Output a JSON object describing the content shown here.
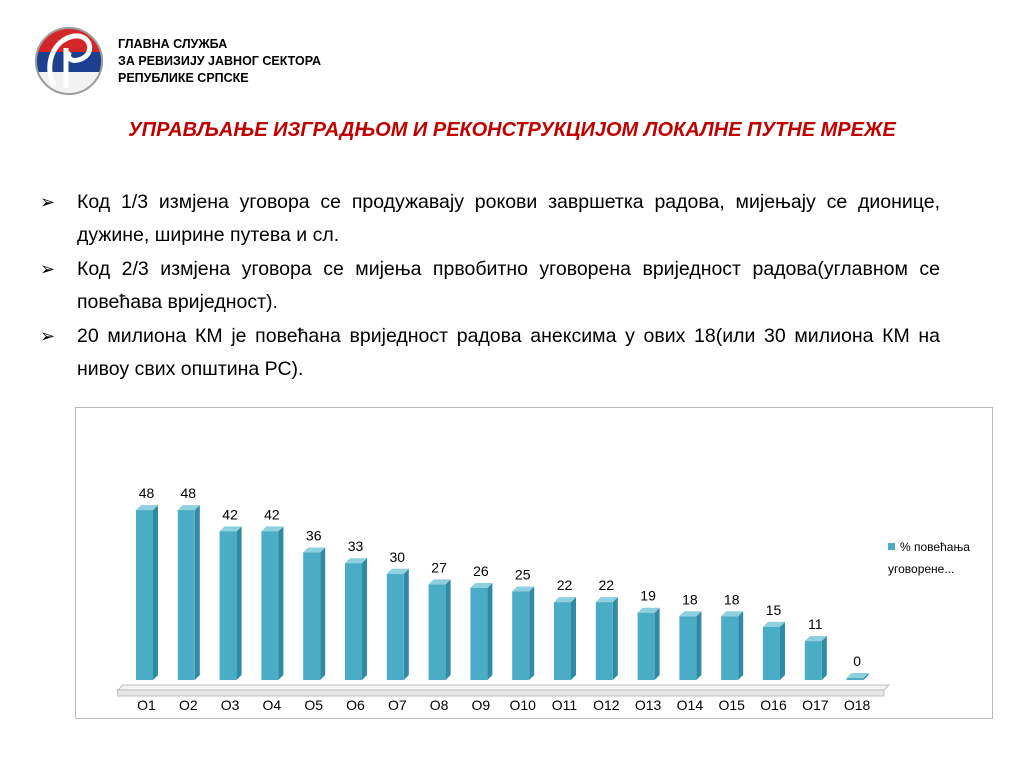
{
  "header": {
    "org_lines": [
      "ГЛАВНА СЛУЖБА",
      "ЗА РЕВИЗИЈУ ЈАВНОГ СЕКТОРА",
      "РЕПУБЛИКЕ СРПСКЕ"
    ],
    "logo_icon": "audit-office-logo",
    "title": "УПРАВЉАЊЕ ИЗГРАДЊОМ И РЕКОНСТРУКЦИЈОМ ЛОКАЛНЕ ПУТНЕ МРЕЖЕ",
    "title_color": "#c00000"
  },
  "bullets": {
    "marker": "➢",
    "items": [
      "Код 1/3 измјена уговора се продужавају рокови завршетка радова, мијењају се дионице, дужине,  ширине путева и сл.",
      "Код 2/3 измјена уговора се мијења првобитно уговорена вриједност радова(углавном се повећава вриједност).",
      "20 милиона КМ је повећана вриједност радова анексима у ових 18(или 30 милиона КМ на нивоу свих општина РС)."
    ]
  },
  "chart_data": {
    "type": "bar",
    "categories": [
      "O1",
      "O2",
      "O3",
      "O4",
      "O5",
      "O6",
      "O7",
      "O8",
      "O9",
      "O10",
      "O11",
      "O12",
      "O13",
      "O14",
      "O15",
      "O16",
      "O17",
      "O18"
    ],
    "series": [
      {
        "name": "% повећања уговорене...",
        "values": [
          48,
          48,
          42,
          42,
          36,
          33,
          30,
          27,
          26,
          25,
          22,
          22,
          19,
          18,
          18,
          15,
          11,
          0
        ],
        "color": "#4bacc6"
      }
    ],
    "legend_lines": [
      "% повећања",
      "уговорене..."
    ],
    "ylim": [
      0,
      50
    ],
    "grid": false,
    "legend_position": "right",
    "data_labels": true,
    "style": "3d-columns"
  }
}
